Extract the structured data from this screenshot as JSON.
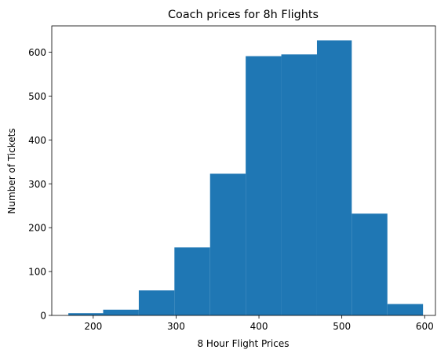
{
  "chart_data": {
    "type": "bar",
    "title": "Coach prices for 8h Flights",
    "xlabel": "8 Hour Flight Prices",
    "ylabel": "Number of Tickets",
    "xlim": [
      150,
      613
    ],
    "ylim": [
      0,
      660
    ],
    "grid": false,
    "bar_color": "#1f77b4",
    "x_ticks": [
      200,
      300,
      400,
      500,
      600
    ],
    "y_ticks": [
      0,
      100,
      200,
      300,
      400,
      500,
      600
    ],
    "bins": [
      {
        "start": 170,
        "end": 212,
        "value": 5
      },
      {
        "start": 212,
        "end": 255,
        "value": 13
      },
      {
        "start": 255,
        "end": 298,
        "value": 57
      },
      {
        "start": 298,
        "end": 341,
        "value": 155
      },
      {
        "start": 341,
        "end": 384,
        "value": 323
      },
      {
        "start": 384,
        "end": 427,
        "value": 591
      },
      {
        "start": 427,
        "end": 470,
        "value": 595
      },
      {
        "start": 470,
        "end": 512,
        "value": 627
      },
      {
        "start": 512,
        "end": 555,
        "value": 232
      },
      {
        "start": 555,
        "end": 598,
        "value": 26
      }
    ]
  }
}
